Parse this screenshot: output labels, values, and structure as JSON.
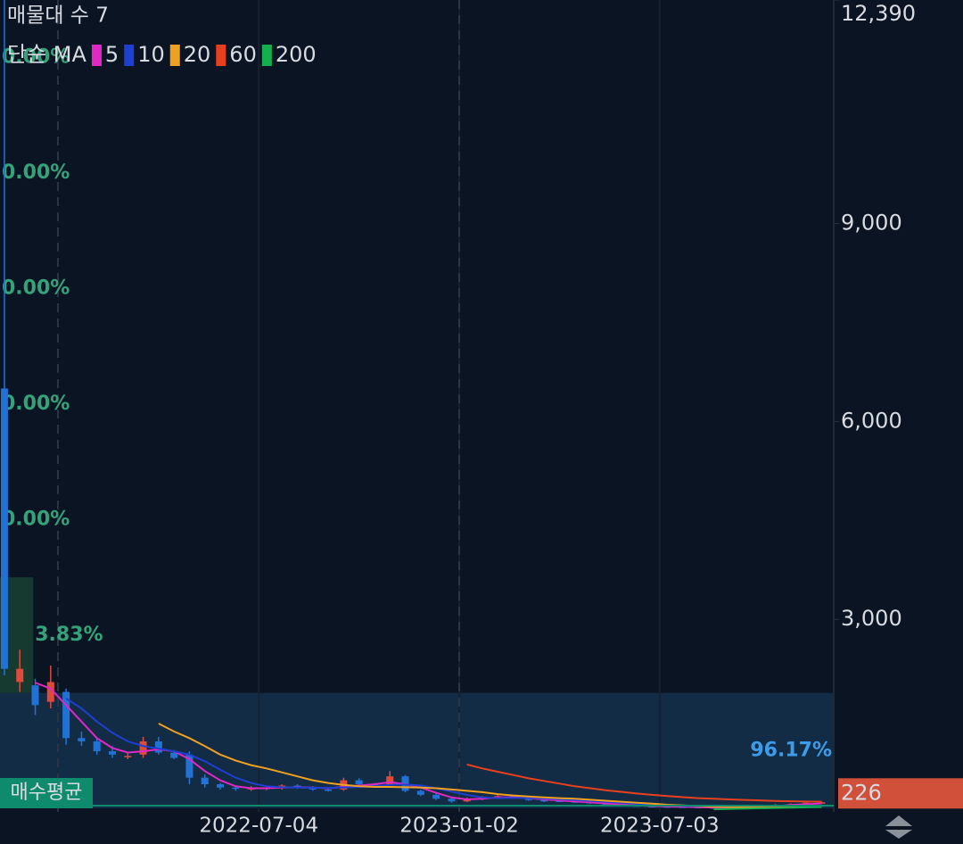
{
  "chart_data": {
    "type": "candlestick",
    "title": "매물대 수 7",
    "legend_title": "단순 MA",
    "x": [
      "2021-11-15",
      "2021-11-29",
      "2021-12-13",
      "2021-12-27",
      "2022-01-10",
      "2022-01-24",
      "2022-02-07",
      "2022-02-21",
      "2022-03-07",
      "2022-03-21",
      "2022-04-04",
      "2022-04-18",
      "2022-05-02",
      "2022-05-16",
      "2022-05-30",
      "2022-06-13",
      "2022-06-27",
      "2022-07-11",
      "2022-07-25",
      "2022-08-08",
      "2022-08-22",
      "2022-09-05",
      "2022-09-19",
      "2022-10-03",
      "2022-10-17",
      "2022-10-31",
      "2022-11-14",
      "2022-11-28",
      "2022-12-12",
      "2022-12-26",
      "2023-01-09",
      "2023-01-23",
      "2023-02-06",
      "2023-02-20",
      "2023-03-06",
      "2023-03-20",
      "2023-04-03",
      "2023-04-17",
      "2023-05-01",
      "2023-05-15",
      "2023-05-29",
      "2023-06-12",
      "2023-06-26",
      "2023-07-10",
      "2023-07-24",
      "2023-08-07",
      "2023-08-21",
      "2023-09-04",
      "2023-09-18",
      "2023-10-02",
      "2023-10-16",
      "2023-10-30",
      "2023-11-13",
      "2023-11-27"
    ],
    "open": [
      6500,
      2050,
      2000,
      1750,
      1900,
      1200,
      1150,
      1000,
      920,
      950,
      1150,
      980,
      950,
      600,
      500,
      450,
      430,
      440,
      450,
      480,
      450,
      420,
      420,
      560,
      500,
      500,
      620,
      400,
      340,
      280,
      240,
      280,
      300,
      320,
      290,
      260,
      250,
      240,
      230,
      210,
      200,
      180,
      170,
      165,
      160,
      155,
      150,
      145,
      140,
      160,
      180,
      190,
      200,
      220
    ],
    "high": [
      12390,
      2540,
      2100,
      2300,
      1950,
      1300,
      1200,
      1080,
      970,
      1220,
      1220,
      1020,
      1000,
      650,
      520,
      480,
      470,
      470,
      500,
      500,
      470,
      450,
      600,
      590,
      520,
      700,
      640,
      420,
      360,
      300,
      300,
      320,
      340,
      330,
      300,
      270,
      270,
      260,
      240,
      230,
      220,
      200,
      190,
      180,
      175,
      170,
      165,
      160,
      170,
      190,
      200,
      210,
      230,
      240
    ],
    "low": [
      2150,
      1900,
      1550,
      1650,
      1100,
      1080,
      950,
      900,
      880,
      900,
      950,
      880,
      500,
      450,
      420,
      400,
      400,
      410,
      420,
      430,
      400,
      390,
      400,
      480,
      470,
      480,
      380,
      320,
      260,
      220,
      230,
      260,
      280,
      280,
      250,
      230,
      230,
      220,
      200,
      190,
      170,
      160,
      150,
      150,
      145,
      140,
      140,
      135,
      135,
      150,
      160,
      170,
      190,
      200
    ],
    "close": [
      2250,
      2250,
      1700,
      2050,
      1200,
      1150,
      1000,
      950,
      930,
      1150,
      980,
      900,
      600,
      500,
      450,
      430,
      440,
      450,
      480,
      450,
      420,
      410,
      560,
      500,
      490,
      620,
      400,
      340,
      280,
      240,
      280,
      300,
      320,
      290,
      260,
      250,
      240,
      230,
      210,
      200,
      180,
      170,
      165,
      160,
      155,
      150,
      145,
      140,
      160,
      180,
      190,
      200,
      220,
      226
    ],
    "up_color": "#de4a3b",
    "down_color": "#2272d6",
    "series": [
      {
        "name": "5",
        "color": "#e028c4",
        "values": [
          null,
          null,
          2040,
          1950,
          1700,
          1450,
          1200,
          1050,
          980,
          1000,
          1030,
          1000,
          880,
          700,
          560,
          470,
          440,
          440,
          450,
          455,
          450,
          440,
          460,
          480,
          500,
          530,
          500,
          450,
          370,
          300,
          270,
          280,
          300,
          300,
          290,
          270,
          255,
          240,
          225,
          210,
          195,
          180,
          170,
          163,
          158,
          152,
          148,
          145,
          147,
          155,
          168,
          185,
          197,
          210
        ]
      },
      {
        "name": "10",
        "color": "#1f3fd0",
        "values": [
          null,
          null,
          null,
          null,
          1800,
          1650,
          1450,
          1280,
          1150,
          1080,
          1040,
          1000,
          950,
          850,
          720,
          600,
          520,
          470,
          455,
          450,
          448,
          445,
          450,
          460,
          470,
          490,
          495,
          480,
          440,
          390,
          340,
          300,
          290,
          292,
          292,
          285,
          275,
          262,
          248,
          233,
          218,
          204,
          192,
          182,
          173,
          167,
          161,
          156,
          152,
          149,
          148,
          150,
          155,
          163
        ]
      },
      {
        "name": "20",
        "color": "#f0a020",
        "values": [
          null,
          null,
          null,
          null,
          null,
          null,
          null,
          null,
          null,
          null,
          1420,
          1300,
          1200,
          1080,
          950,
          860,
          790,
          740,
          680,
          620,
          560,
          520,
          490,
          470,
          460,
          460,
          455,
          450,
          440,
          420,
          400,
          380,
          350,
          330,
          315,
          300,
          290,
          280,
          265,
          250,
          235,
          220,
          205,
          190,
          180,
          170,
          160,
          155,
          152,
          150,
          152,
          156,
          165,
          175
        ]
      },
      {
        "name": "60",
        "color": "#e8401e",
        "values": [
          null,
          null,
          null,
          null,
          null,
          null,
          null,
          null,
          null,
          null,
          null,
          null,
          null,
          null,
          null,
          null,
          null,
          null,
          null,
          null,
          null,
          null,
          null,
          null,
          null,
          null,
          null,
          null,
          null,
          null,
          800,
          740,
          690,
          640,
          590,
          550,
          510,
          470,
          440,
          410,
          385,
          360,
          340,
          320,
          305,
          290,
          280,
          270,
          262,
          255,
          248,
          242,
          238,
          235
        ]
      },
      {
        "name": "200",
        "color": "#14b050",
        "values": [
          null,
          null,
          null,
          null,
          null,
          null,
          null,
          null,
          null,
          null,
          null,
          null,
          null,
          null,
          null,
          null,
          null,
          null,
          null,
          null,
          null,
          null,
          null,
          null,
          null,
          null,
          null,
          null,
          null,
          null,
          null,
          null,
          null,
          null,
          null,
          null,
          null,
          null,
          null,
          null,
          null,
          null,
          null,
          null,
          null,
          null,
          120,
          125,
          130,
          135,
          140,
          145,
          150,
          155
        ]
      }
    ],
    "volume_profile": {
      "values": [
        96.17,
        3.83,
        0,
        0,
        0,
        0,
        0
      ],
      "value_labels": [
        "96.17%",
        "3.83%",
        "0.00%",
        "0.00%",
        "0.00%",
        "0.00%",
        "0.00%"
      ],
      "color": "#163a30",
      "highlight_color": "#132c45",
      "label_color": "#35a27a",
      "highlight_label_color": "#3d9be9"
    },
    "avg_buy": {
      "label": "매수평균",
      "value": 176,
      "color": "#0e8a6c"
    },
    "current_price": {
      "value": 226,
      "color": "#d0503a"
    },
    "xlim": [
      "2021-11-11",
      "2023-12-08"
    ],
    "xticks": [
      "2022-07-04",
      "2023-01-02",
      "2023-07-03"
    ],
    "ylim": [
      0,
      12390
    ],
    "yticks": [
      {
        "value": 3000,
        "label": "3,000"
      },
      {
        "value": 6000,
        "label": "6,000"
      },
      {
        "value": 9000,
        "label": "9,000"
      },
      {
        "value": 12390,
        "label": "12,390"
      }
    ],
    "grid": true
  }
}
